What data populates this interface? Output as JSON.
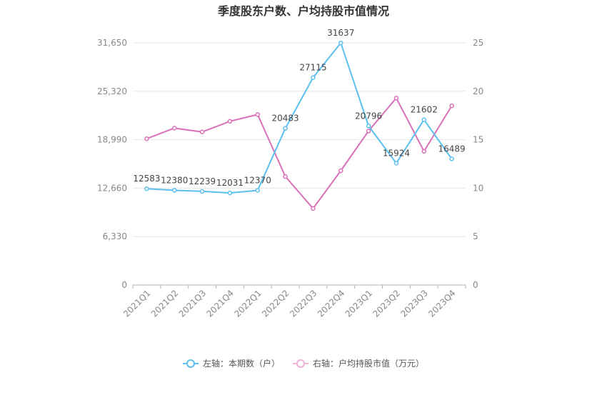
{
  "chart_data": {
    "type": "line",
    "title": "季度股东户数、户均持股市值情况",
    "categories": [
      "2021Q1",
      "2021Q2",
      "2021Q3",
      "2021Q4",
      "2022Q1",
      "2022Q2",
      "2022Q3",
      "2022Q4",
      "2023Q1",
      "2023Q2",
      "2023Q3",
      "2023Q4"
    ],
    "left_axis": {
      "ticks": [
        "0",
        "6,330",
        "12,660",
        "18,990",
        "25,320",
        "31,650"
      ],
      "ylim": [
        0,
        31650
      ]
    },
    "right_axis": {
      "ticks": [
        "0",
        "5",
        "10",
        "15",
        "20",
        "25"
      ],
      "ylim": [
        0,
        25
      ]
    },
    "series": [
      {
        "name": "左轴：本期数（户）",
        "axis": "left",
        "color": "#5bc0f0",
        "values": [
          12583,
          12380,
          12239,
          12031,
          12370,
          20483,
          27115,
          31637,
          20796,
          15924,
          21602,
          16489
        ],
        "labels": [
          "12583",
          "12380",
          "12239",
          "12031",
          "12370",
          "20483",
          "27115",
          "31637",
          "20796",
          "15924",
          "21602",
          "16489"
        ]
      },
      {
        "name": "右轴：户均持股市值（万元）",
        "axis": "right",
        "color": "#d970b8",
        "values": [
          15.1,
          16.2,
          15.8,
          16.9,
          17.6,
          11.2,
          7.9,
          11.8,
          15.9,
          19.3,
          13.8,
          18.5
        ]
      }
    ],
    "grid": true,
    "legend_position": "bottom"
  }
}
